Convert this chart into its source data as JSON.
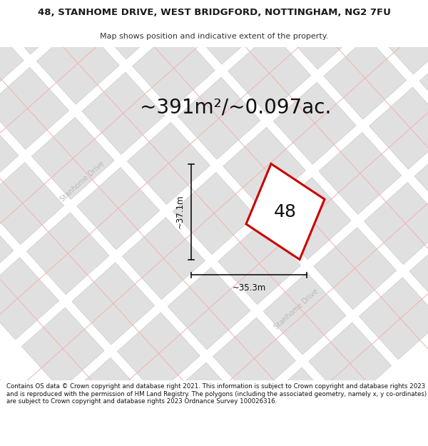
{
  "title": "48, STANHOME DRIVE, WEST BRIDGFORD, NOTTINGHAM, NG2 7FU",
  "subtitle": "Map shows position and indicative extent of the property.",
  "area_text": "~391m²/~0.097ac.",
  "label_48": "48",
  "dim_vertical": "~37.1m",
  "dim_horizontal": "~35.3m",
  "footer": "Contains OS data © Crown copyright and database right 2021. This information is subject to Crown copyright and database rights 2023 and is reproduced with the permission of HM Land Registry. The polygons (including the associated geometry, namely x, y co-ordinates) are subject to Crown copyright and database rights 2023 Ordnance Survey 100026316.",
  "map_bg": "#ffffff",
  "plot_fill": "#ffffff",
  "plot_edge": "#cc0000",
  "road_line_color": "#f0b8b8",
  "block_fill": "#e0e0e0",
  "block_edge": "#cccccc",
  "road_label_color": "#b8b8b8",
  "title_fontsize": 9.5,
  "subtitle_fontsize": 8,
  "area_fontsize": 20,
  "label_fontsize": 18,
  "dim_fontsize": 8.5,
  "footer_fontsize": 6.2
}
